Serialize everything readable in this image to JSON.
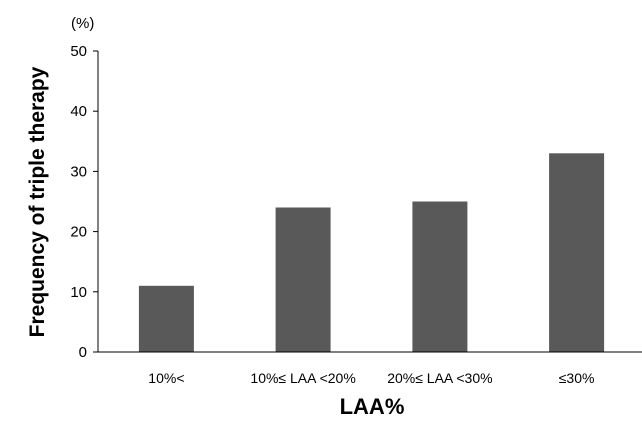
{
  "chart_data": {
    "type": "bar",
    "categories": [
      "10%<",
      "10%≤ LAA <20%",
      "20%≤ LAA <30%",
      "≤30%"
    ],
    "values": [
      11,
      24,
      25,
      33
    ],
    "xlabel": "LAA%",
    "ylabel": "Frequency of triple therapy",
    "y_unit": "(%)",
    "ylim": [
      0,
      50
    ],
    "yticks": [
      0,
      10,
      20,
      30,
      40,
      50
    ],
    "grid": false,
    "legend": "none",
    "bar_color": "#595959",
    "axis_color": "#000000"
  }
}
